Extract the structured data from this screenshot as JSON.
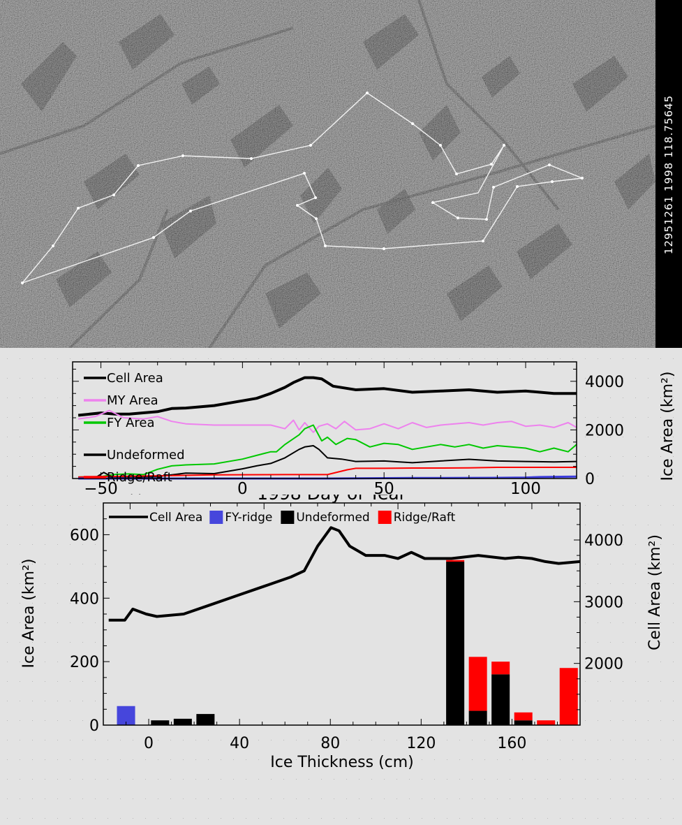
{
  "header": {
    "sidebar_label": "12951261   1998   118.75645"
  },
  "chart_data": [
    {
      "type": "line",
      "xlabel": "1998 Day of Year",
      "ylabel": "Ice Area (km²)",
      "xlim": [
        -60,
        118
      ],
      "ylim": [
        0,
        4800
      ],
      "x_ticks": [
        -50,
        0,
        50,
        100
      ],
      "y_ticks": [
        0,
        2000,
        4000
      ],
      "legend_placement": "top-left",
      "series": [
        {
          "name": "Cell Area",
          "color": "#000000",
          "width": 4,
          "x": [
            -58,
            -50,
            -45,
            -40,
            -30,
            -25,
            -20,
            -10,
            0,
            5,
            10,
            15,
            18,
            22,
            25,
            28,
            32,
            40,
            50,
            60,
            70,
            80,
            90,
            100,
            110,
            118
          ],
          "y": [
            2600,
            2700,
            2650,
            2650,
            2750,
            2880,
            2900,
            3000,
            3200,
            3300,
            3500,
            3750,
            3950,
            4150,
            4150,
            4100,
            3800,
            3650,
            3700,
            3550,
            3600,
            3650,
            3550,
            3600,
            3500,
            3500
          ]
        },
        {
          "name": "MY Area",
          "color": "#ee82ee",
          "width": 2,
          "x": [
            -58,
            -52,
            -47,
            -42,
            -35,
            -30,
            -25,
            -20,
            -10,
            0,
            5,
            10,
            15,
            18,
            20,
            22,
            25,
            27,
            30,
            33,
            36,
            40,
            45,
            50,
            55,
            60,
            65,
            70,
            75,
            80,
            85,
            90,
            95,
            100,
            105,
            110,
            115,
            118
          ],
          "y": [
            2450,
            2550,
            2800,
            2500,
            2450,
            2550,
            2350,
            2250,
            2200,
            2200,
            2200,
            2200,
            2050,
            2400,
            2000,
            2300,
            1900,
            2150,
            2250,
            2050,
            2350,
            2000,
            2050,
            2250,
            2050,
            2300,
            2100,
            2200,
            2250,
            2300,
            2200,
            2300,
            2350,
            2150,
            2200,
            2100,
            2300,
            2100
          ]
        },
        {
          "name": "FY Area",
          "color": "#00c800",
          "width": 2,
          "x": [
            -58,
            -50,
            -45,
            -40,
            -35,
            -30,
            -25,
            -20,
            -10,
            0,
            5,
            10,
            12,
            15,
            20,
            22,
            25,
            28,
            30,
            33,
            37,
            40,
            45,
            50,
            55,
            60,
            65,
            70,
            75,
            80,
            85,
            90,
            95,
            100,
            105,
            110,
            115,
            118
          ],
          "y": [
            60,
            80,
            170,
            190,
            160,
            380,
            520,
            560,
            600,
            800,
            950,
            1100,
            1100,
            1400,
            1800,
            2050,
            2200,
            1550,
            1700,
            1400,
            1650,
            1600,
            1300,
            1450,
            1400,
            1200,
            1300,
            1400,
            1300,
            1400,
            1250,
            1350,
            1300,
            1250,
            1100,
            1250,
            1100,
            1400
          ]
        },
        {
          "name": "Undeformed",
          "color": "#000000",
          "width": 2,
          "x": [
            -58,
            -52,
            -49,
            -46,
            -40,
            -30,
            -25,
            -20,
            -10,
            0,
            5,
            10,
            15,
            20,
            22,
            25,
            27,
            30,
            35,
            40,
            50,
            60,
            70,
            80,
            90,
            100,
            110,
            118
          ],
          "y": [
            30,
            30,
            250,
            60,
            60,
            80,
            150,
            220,
            200,
            400,
            520,
            620,
            850,
            1200,
            1300,
            1350,
            1200,
            850,
            800,
            700,
            720,
            650,
            720,
            790,
            720,
            700,
            680,
            700
          ]
        },
        {
          "name": "Ridge/Raft",
          "color": "#ff0000",
          "width": 2,
          "x": [
            -58,
            -10,
            15,
            20,
            25,
            30,
            37,
            40,
            50,
            60,
            70,
            80,
            90,
            100,
            110,
            118
          ],
          "y": [
            60,
            150,
            160,
            160,
            160,
            160,
            360,
            420,
            420,
            430,
            430,
            440,
            460,
            460,
            460,
            460
          ]
        },
        {
          "name": "FY-ridge",
          "color": "#3c3cdc",
          "width": 3,
          "x": [
            -58,
            10,
            30,
            40,
            50,
            60,
            70,
            80,
            90,
            100,
            105,
            110,
            118
          ],
          "y": [
            0,
            0,
            0,
            10,
            15,
            20,
            20,
            25,
            30,
            40,
            60,
            70,
            80
          ]
        }
      ]
    },
    {
      "type": "bar",
      "xlabel": "Ice Thickness (cm)",
      "ylabel": "Ice Area (km²)",
      "y2label": "Cell Area (km²)",
      "xlim": [
        -20,
        190
      ],
      "ylim": [
        0,
        700
      ],
      "y2lim": [
        1000,
        4600
      ],
      "x_ticks": [
        0,
        40,
        80,
        120,
        160
      ],
      "y_ticks": [
        0,
        200,
        400,
        600
      ],
      "y2_ticks": [
        2000,
        3000,
        4000
      ],
      "top_axis": {
        "xlim": [
          -60,
          118
        ],
        "ticks": [
          -50,
          0,
          50,
          100
        ]
      },
      "legend_placement": "top",
      "legend": [
        {
          "name": "Cell Area",
          "kind": "line",
          "color": "#000000"
        },
        {
          "name": "FY-ridge",
          "kind": "box",
          "color": "#4646dc"
        },
        {
          "name": "Undeformed",
          "kind": "box",
          "color": "#000000"
        },
        {
          "name": "Ridge/Raft",
          "kind": "box",
          "color": "#ff0000"
        }
      ],
      "bars": [
        {
          "x": -10,
          "fy_ridge": 60,
          "undeformed": 0,
          "ridge_raft": 0
        },
        {
          "x": 5,
          "fy_ridge": 0,
          "undeformed": 15,
          "ridge_raft": 0
        },
        {
          "x": 15,
          "fy_ridge": 0,
          "undeformed": 20,
          "ridge_raft": 0
        },
        {
          "x": 25,
          "fy_ridge": 0,
          "undeformed": 35,
          "ridge_raft": 0
        },
        {
          "x": 135,
          "fy_ridge": 0,
          "undeformed": 515,
          "ridge_raft": 5
        },
        {
          "x": 145,
          "fy_ridge": 0,
          "undeformed": 45,
          "ridge_raft": 170
        },
        {
          "x": 155,
          "fy_ridge": 0,
          "undeformed": 160,
          "ridge_raft": 40
        },
        {
          "x": 165,
          "fy_ridge": 0,
          "undeformed": 15,
          "ridge_raft": 25
        },
        {
          "x": 175,
          "fy_ridge": 0,
          "undeformed": 0,
          "ridge_raft": 15
        },
        {
          "x": 185,
          "fy_ridge": 0,
          "undeformed": 0,
          "ridge_raft": 180
        }
      ],
      "cell_area_series": {
        "name": "Cell Area",
        "x": [
          -58,
          -52,
          -49,
          -44,
          -40,
          -30,
          -20,
          -10,
          0,
          10,
          15,
          20,
          25,
          28,
          32,
          38,
          45,
          50,
          55,
          60,
          70,
          80,
          90,
          95,
          100,
          105,
          110,
          118
        ],
        "y": [
          2700,
          2700,
          2880,
          2800,
          2760,
          2800,
          2950,
          3100,
          3250,
          3400,
          3500,
          3900,
          4200,
          4150,
          3900,
          3750,
          3750,
          3700,
          3800,
          3700,
          3700,
          3750,
          3700,
          3720,
          3700,
          3650,
          3620,
          3650
        ]
      }
    }
  ]
}
